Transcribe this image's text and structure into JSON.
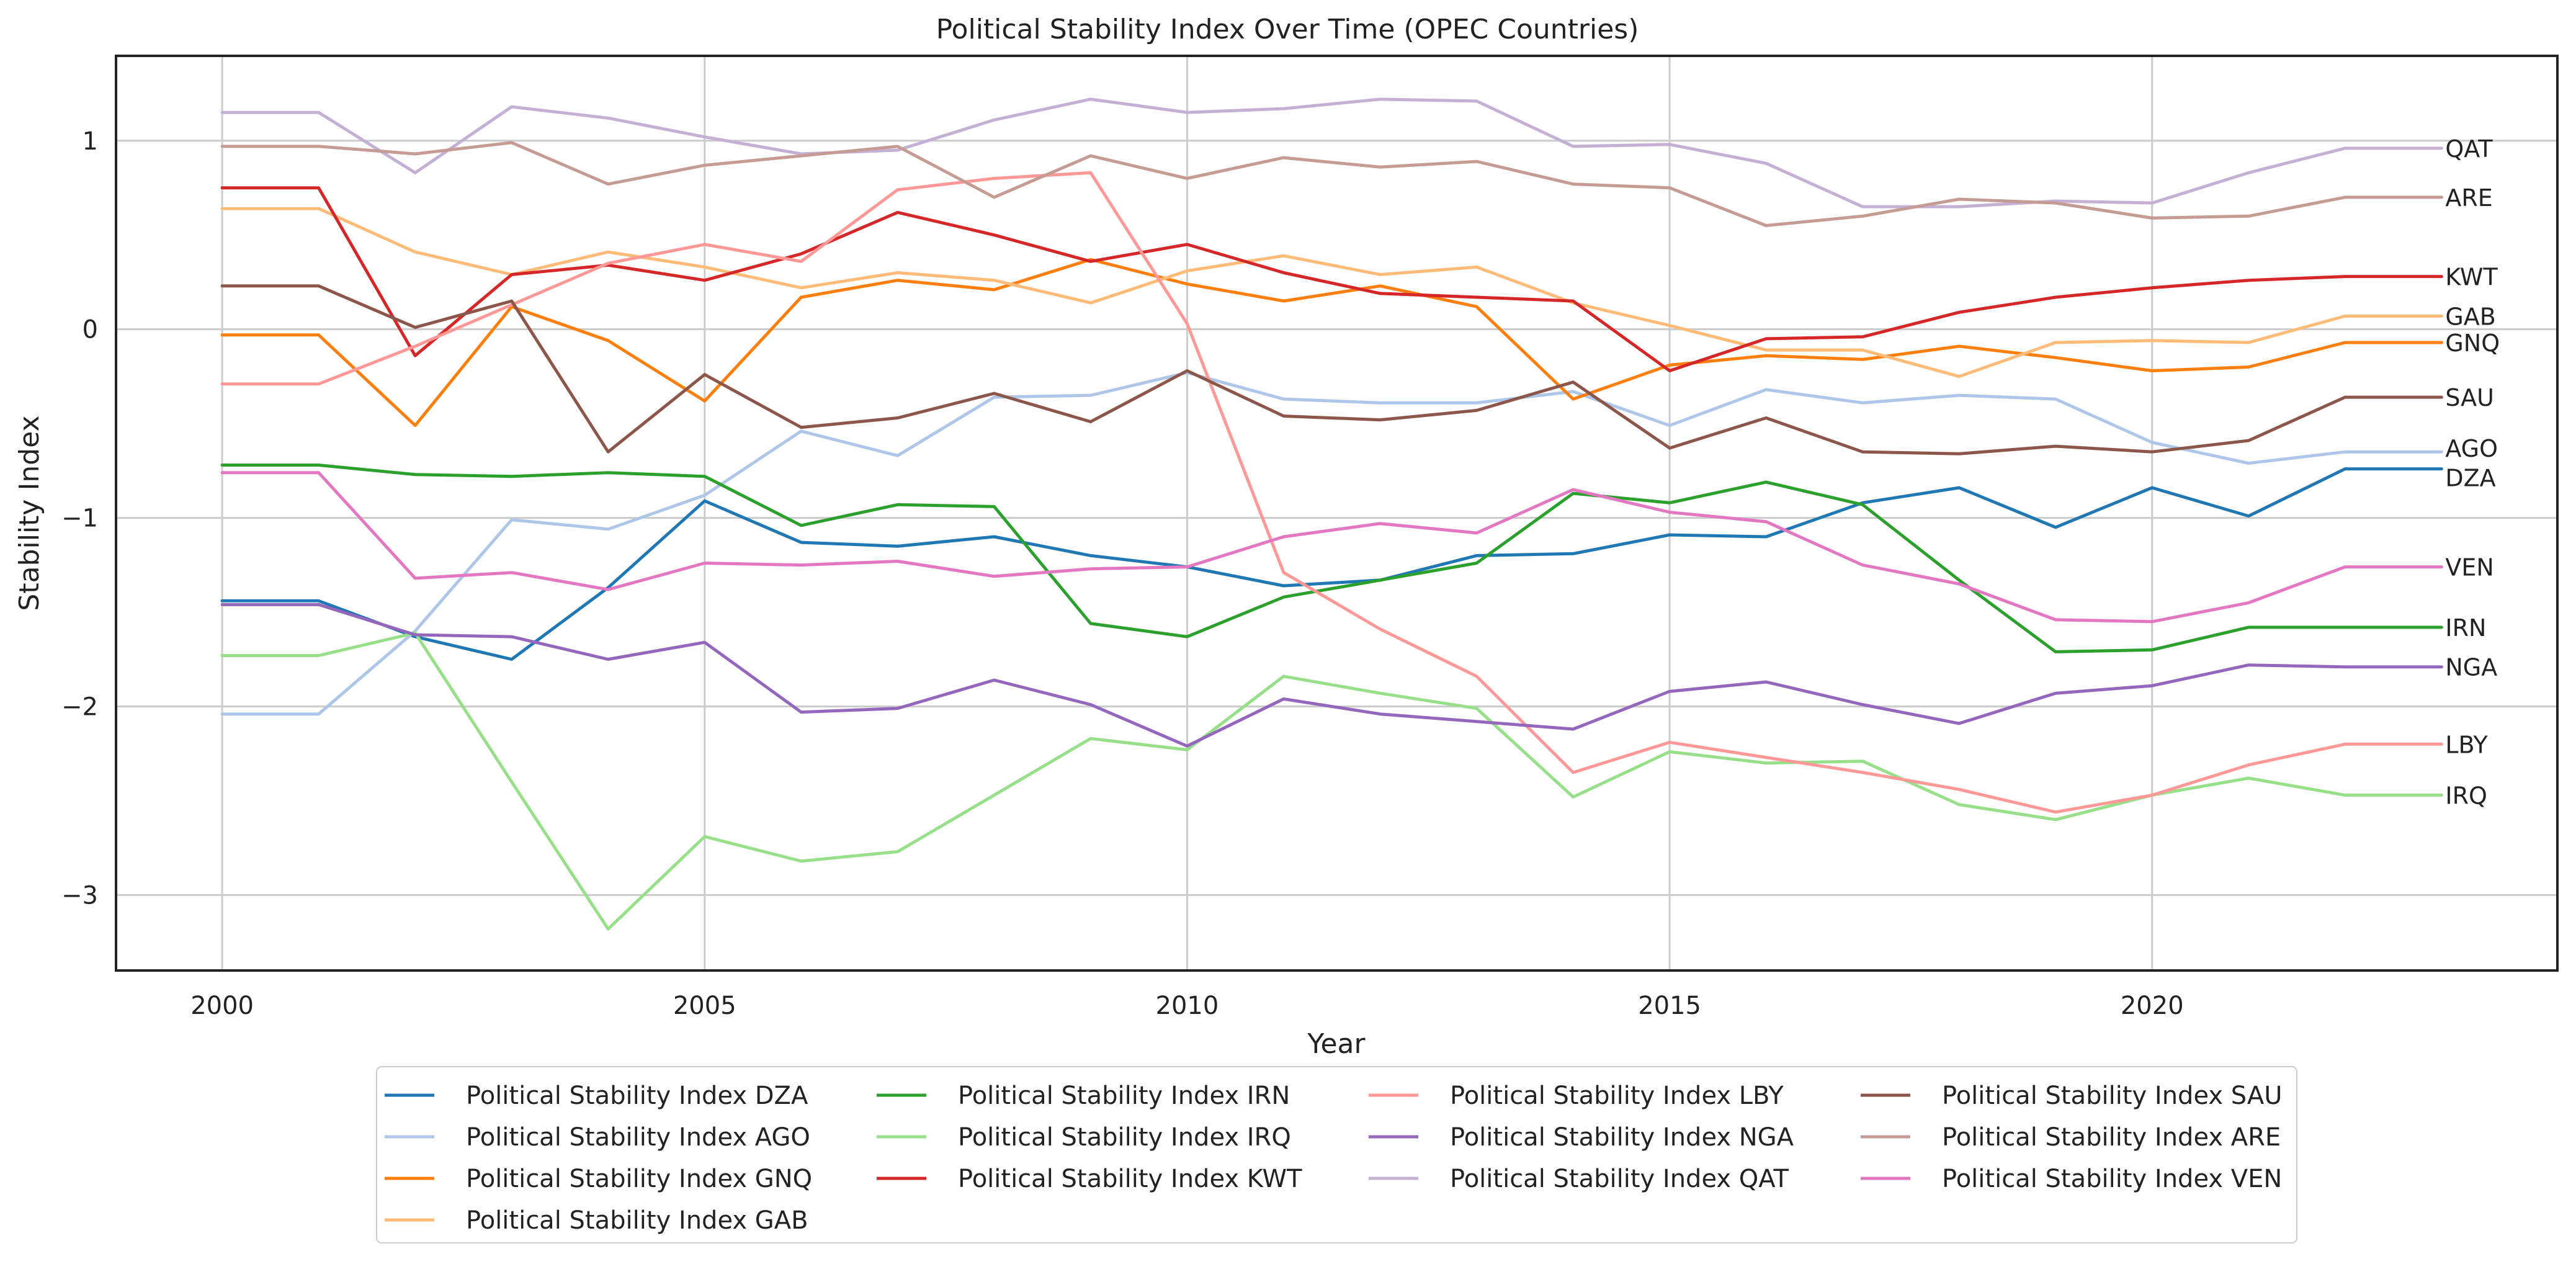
{
  "chart_data": {
    "type": "line",
    "title": "Political Stability Index Over Time (OPEC Countries)",
    "xlabel": "Year",
    "ylabel": "Stability Index",
    "xlim": [
      1998.9,
      2024.2
    ],
    "ylim": [
      -3.4,
      1.45
    ],
    "xticks": [
      2000,
      2005,
      2010,
      2015,
      2020
    ],
    "yticks": [
      -3,
      -2,
      -1,
      0,
      1
    ],
    "ytick_labels": [
      "−3",
      "−2",
      "−1",
      "0",
      "1"
    ],
    "grid": true,
    "legend_placement": "bottom-center",
    "legend_columns": 4,
    "x": [
      2000,
      2001,
      2002,
      2003,
      2004,
      2005,
      2006,
      2007,
      2008,
      2009,
      2010,
      2011,
      2012,
      2013,
      2014,
      2015,
      2016,
      2017,
      2018,
      2019,
      2020,
      2021,
      2022,
      2023
    ],
    "series": [
      {
        "name": "Political Stability Index DZA",
        "end_label": "DZA",
        "color": "#1f77b4",
        "values": [
          -1.44,
          -1.44,
          -1.63,
          -1.75,
          -1.37,
          -0.91,
          -1.13,
          -1.15,
          -1.1,
          -1.2,
          -1.26,
          -1.36,
          -1.33,
          -1.2,
          -1.19,
          -1.09,
          -1.1,
          -0.92,
          -0.84,
          -1.05,
          -0.84,
          -0.99,
          -0.74,
          -0.74
        ]
      },
      {
        "name": "Political Stability Index AGO",
        "end_label": "AGO",
        "color": "#aec7e8",
        "values": [
          -2.04,
          -2.04,
          -1.6,
          -1.01,
          -1.06,
          -0.88,
          -0.54,
          -0.67,
          -0.36,
          -0.35,
          -0.23,
          -0.37,
          -0.39,
          -0.39,
          -0.33,
          -0.51,
          -0.32,
          -0.39,
          -0.35,
          -0.37,
          -0.6,
          -0.71,
          -0.65,
          -0.65
        ]
      },
      {
        "name": "Political Stability Index GNQ",
        "end_label": "GNQ",
        "color": "#ff7f0e",
        "values": [
          -0.03,
          -0.03,
          -0.51,
          0.12,
          -0.06,
          -0.38,
          0.17,
          0.26,
          0.21,
          0.37,
          0.24,
          0.15,
          0.23,
          0.12,
          -0.37,
          -0.19,
          -0.14,
          -0.16,
          -0.09,
          -0.15,
          -0.22,
          -0.2,
          -0.07,
          -0.07
        ]
      },
      {
        "name": "Political Stability Index GAB",
        "end_label": "GAB",
        "color": "#ffbb78",
        "values": [
          0.64,
          0.64,
          0.41,
          0.29,
          0.41,
          0.33,
          0.22,
          0.3,
          0.26,
          0.14,
          0.31,
          0.39,
          0.29,
          0.33,
          0.14,
          0.02,
          -0.11,
          -0.11,
          -0.25,
          -0.07,
          -0.06,
          -0.07,
          0.07,
          0.07
        ]
      },
      {
        "name": "Political Stability Index IRN",
        "end_label": "IRN",
        "color": "#2ca02c",
        "values": [
          -0.72,
          -0.72,
          -0.77,
          -0.78,
          -0.76,
          -0.78,
          -1.04,
          -0.93,
          -0.94,
          -1.56,
          -1.63,
          -1.42,
          -1.33,
          -1.24,
          -0.87,
          -0.92,
          -0.81,
          -0.93,
          -1.33,
          -1.71,
          -1.7,
          -1.58,
          -1.58,
          -1.58
        ]
      },
      {
        "name": "Political Stability Index IRQ",
        "end_label": "IRQ",
        "color": "#98df8a",
        "values": [
          -1.73,
          -1.73,
          -1.61,
          -2.4,
          -3.18,
          -2.69,
          -2.82,
          -2.77,
          -2.47,
          -2.17,
          -2.23,
          -1.84,
          -1.93,
          -2.01,
          -2.48,
          -2.24,
          -2.3,
          -2.29,
          -2.52,
          -2.6,
          -2.47,
          -2.38,
          -2.47,
          -2.47
        ]
      },
      {
        "name": "Political Stability Index KWT",
        "end_label": "KWT",
        "color": "#d62728",
        "values": [
          0.75,
          0.75,
          -0.14,
          0.29,
          0.34,
          0.26,
          0.4,
          0.62,
          0.5,
          0.36,
          0.45,
          0.3,
          0.19,
          0.17,
          0.15,
          -0.22,
          -0.05,
          -0.04,
          0.09,
          0.17,
          0.22,
          0.26,
          0.28,
          0.28
        ]
      },
      {
        "name": "Political Stability Index LBY",
        "end_label": "LBY",
        "color": "#ff9896",
        "values": [
          -0.29,
          -0.29,
          -0.09,
          0.13,
          0.35,
          0.45,
          0.36,
          0.74,
          0.8,
          0.83,
          0.03,
          -1.29,
          -1.59,
          -1.84,
          -2.35,
          -2.19,
          -2.27,
          -2.35,
          -2.44,
          -2.56,
          -2.47,
          -2.31,
          -2.2,
          -2.2
        ]
      },
      {
        "name": "Political Stability Index NGA",
        "end_label": "NGA",
        "color": "#9467bd",
        "values": [
          -1.46,
          -1.46,
          -1.62,
          -1.63,
          -1.75,
          -1.66,
          -2.03,
          -2.01,
          -1.86,
          -1.99,
          -2.21,
          -1.96,
          -2.04,
          -2.08,
          -2.12,
          -1.92,
          -1.87,
          -1.99,
          -2.09,
          -1.93,
          -1.89,
          -1.78,
          -1.79,
          -1.79
        ]
      },
      {
        "name": "Political Stability Index QAT",
        "end_label": "QAT",
        "color": "#c5b0d5",
        "values": [
          1.15,
          1.15,
          0.83,
          1.18,
          1.12,
          1.02,
          0.93,
          0.95,
          1.11,
          1.22,
          1.15,
          1.17,
          1.22,
          1.21,
          0.97,
          0.98,
          0.88,
          0.65,
          0.65,
          0.68,
          0.67,
          0.83,
          0.96,
          0.96
        ]
      },
      {
        "name": "Political Stability Index SAU",
        "end_label": "SAU",
        "color": "#8c564b",
        "values": [
          0.23,
          0.23,
          0.01,
          0.15,
          -0.65,
          -0.24,
          -0.52,
          -0.47,
          -0.34,
          -0.49,
          -0.22,
          -0.46,
          -0.48,
          -0.43,
          -0.28,
          -0.63,
          -0.47,
          -0.65,
          -0.66,
          -0.62,
          -0.65,
          -0.59,
          -0.36,
          -0.36
        ]
      },
      {
        "name": "Political Stability Index ARE",
        "end_label": "ARE",
        "color": "#c49c94",
        "values": [
          0.97,
          0.97,
          0.93,
          0.99,
          0.77,
          0.87,
          0.92,
          0.97,
          0.7,
          0.92,
          0.8,
          0.91,
          0.86,
          0.89,
          0.77,
          0.75,
          0.55,
          0.6,
          0.69,
          0.67,
          0.59,
          0.6,
          0.7,
          0.7
        ]
      },
      {
        "name": "Political Stability Index VEN",
        "end_label": "VEN",
        "color": "#e377c2",
        "values": [
          -0.76,
          -0.76,
          -1.32,
          -1.29,
          -1.38,
          -1.24,
          -1.25,
          -1.23,
          -1.31,
          -1.27,
          -1.26,
          -1.1,
          -1.03,
          -1.08,
          -0.85,
          -0.97,
          -1.02,
          -1.25,
          -1.35,
          -1.54,
          -1.55,
          -1.45,
          -1.26,
          -1.26
        ]
      }
    ]
  }
}
